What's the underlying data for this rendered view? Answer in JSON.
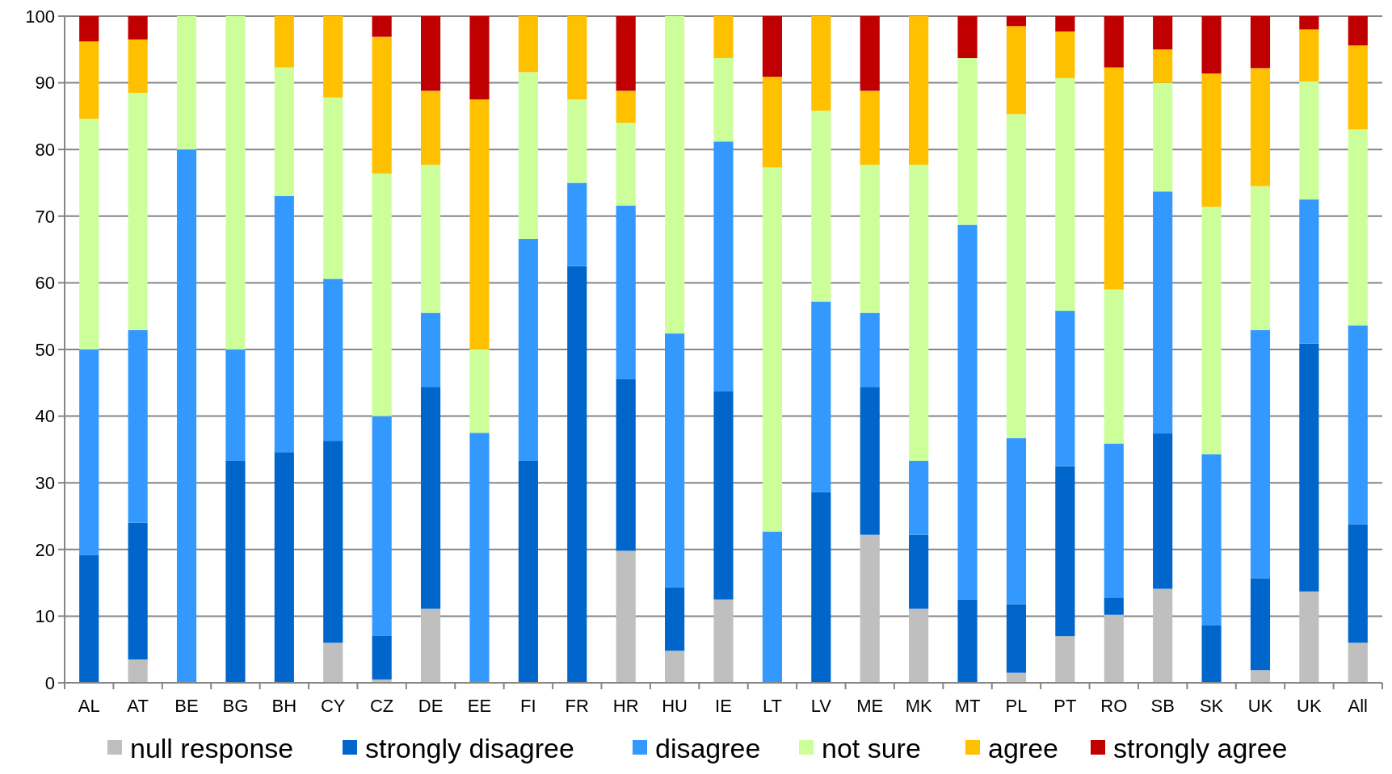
{
  "chart_data": {
    "type": "bar",
    "stacked": true,
    "categories": [
      "AL",
      "AT",
      "BE",
      "BG",
      "BH",
      "CY",
      "CZ",
      "DE",
      "EE",
      "FI",
      "FR",
      "HR",
      "HU",
      "IE",
      "LT",
      "LV",
      "ME",
      "MK",
      "MT",
      "PL",
      "PT",
      "RO",
      "SB",
      "SK",
      "UK",
      "UK",
      "All"
    ],
    "series": [
      {
        "name": "null response",
        "color": "#bfbfbf",
        "values": [
          0,
          3.5,
          0,
          0,
          0,
          6,
          0.5,
          11.1,
          0,
          0,
          0,
          19.8,
          4.8,
          12.5,
          0,
          0,
          22.2,
          11.1,
          0,
          1.5,
          7,
          10.2,
          14.1,
          0,
          1.9,
          13.7,
          6
        ]
      },
      {
        "name": "strongly disagree",
        "color": "#0066cc",
        "values": [
          19.2,
          20.5,
          0,
          33.3,
          34.6,
          30.3,
          6.6,
          33.3,
          0,
          33.3,
          62.5,
          25.8,
          9.5,
          31.2,
          0,
          28.6,
          22.2,
          11.1,
          12.5,
          10.3,
          25.5,
          2.6,
          23.3,
          8.6,
          13.8,
          37.2,
          17.8
        ]
      },
      {
        "name": "disagree",
        "color": "#3399ff",
        "values": [
          30.8,
          28.9,
          80,
          16.7,
          38.4,
          24.3,
          32.9,
          11.1,
          37.5,
          33.3,
          12.5,
          26,
          38.1,
          37.5,
          22.7,
          28.6,
          11.1,
          11.1,
          56.2,
          24.9,
          23.3,
          23.1,
          36.3,
          25.7,
          37.2,
          21.6,
          29.8
        ]
      },
      {
        "name": "not sure",
        "color": "#ccff99",
        "values": [
          34.6,
          35.6,
          20,
          50,
          19.3,
          27.2,
          36.4,
          22.2,
          12.5,
          25,
          12.5,
          12.4,
          47.6,
          12.5,
          54.6,
          28.6,
          22.2,
          44.4,
          25,
          48.6,
          34.9,
          23.1,
          16.3,
          37.1,
          21.6,
          17.7,
          29.4
        ]
      },
      {
        "name": "agree",
        "color": "#ffc000",
        "values": [
          11.6,
          8,
          0,
          0,
          7.7,
          12.2,
          20.5,
          11.1,
          37.5,
          8.4,
          12.5,
          4.8,
          0,
          6.3,
          13.6,
          14.2,
          11.1,
          22.3,
          0,
          13.2,
          7,
          33.3,
          5,
          20,
          17.7,
          7.8,
          12.6
        ]
      },
      {
        "name": "strongly agree",
        "color": "#c00000",
        "values": [
          3.8,
          3.5,
          0,
          0,
          0,
          0,
          3.1,
          11.2,
          12.5,
          0,
          0,
          11.2,
          0,
          0,
          9.1,
          0,
          11.2,
          0,
          6.3,
          1.5,
          2.3,
          7.7,
          5,
          8.6,
          7.8,
          2,
          4.4
        ]
      }
    ],
    "ylim": [
      0,
      100
    ],
    "yticks": [
      0,
      10,
      20,
      30,
      40,
      50,
      60,
      70,
      80,
      90,
      100
    ],
    "grid": "y",
    "legend": "bottom"
  }
}
